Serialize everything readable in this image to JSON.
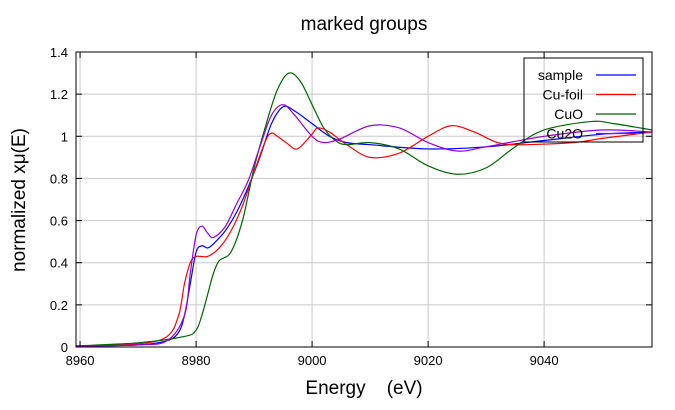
{
  "chart_data": {
    "type": "line",
    "title": "marked groups",
    "xlabel": "Energy    (eV)",
    "ylabel": "normalized xμ(E)",
    "xlim": [
      8959.3,
      9058.6
    ],
    "ylim": [
      0,
      1.4
    ],
    "xticks": [
      8960,
      8980,
      9000,
      9020,
      9040
    ],
    "xtick_labels": [
      "8960",
      "8980",
      "9000",
      "9020",
      "9040"
    ],
    "yticks": [
      0,
      0.2,
      0.4,
      0.6,
      0.8,
      1.0,
      1.2,
      1.4
    ],
    "ytick_labels": [
      "0",
      "0.2",
      "0.4",
      "0.6",
      "0.8",
      "1",
      "1.2",
      "1.4"
    ],
    "grid": true,
    "legend_position": "top-right",
    "series": [
      {
        "name": "sample",
        "color": "#0000ff",
        "x": [
          8959.3,
          8970,
          8975,
          8977,
          8978,
          8979,
          8980,
          8981,
          8982,
          8983,
          8985,
          8987,
          8989,
          8991,
          8993,
          8995,
          8997,
          9000,
          9003,
          9006,
          9010,
          9020,
          9030,
          9040,
          9050,
          9058.6
        ],
        "y": [
          0.005,
          0.01,
          0.03,
          0.07,
          0.15,
          0.3,
          0.45,
          0.48,
          0.47,
          0.49,
          0.55,
          0.64,
          0.76,
          0.9,
          1.06,
          1.14,
          1.12,
          1.06,
          1.0,
          0.97,
          0.96,
          0.94,
          0.95,
          0.98,
          1.01,
          1.02
        ]
      },
      {
        "name": "Cu-foil",
        "color": "#ff0000",
        "x": [
          8959.3,
          8970,
          8975,
          8977,
          8978,
          8979,
          8980,
          8982,
          8984,
          8986,
          8988,
          8990,
          8992,
          8993,
          8994,
          8996,
          8997,
          8998,
          9000,
          9001,
          9003,
          9006,
          9010,
          9015,
          9020,
          9024,
          9028,
          9032,
          9036,
          9045,
          9050,
          9058.6
        ],
        "y": [
          0.005,
          0.015,
          0.05,
          0.15,
          0.3,
          0.4,
          0.43,
          0.43,
          0.47,
          0.55,
          0.67,
          0.83,
          0.98,
          1.015,
          1.0,
          0.96,
          0.94,
          0.95,
          1.01,
          1.04,
          1.02,
          0.96,
          0.9,
          0.92,
          1.0,
          1.05,
          1.02,
          0.97,
          0.96,
          0.97,
          0.99,
          1.02
        ]
      },
      {
        "name": "CuO",
        "color": "#006400",
        "x": [
          8959.3,
          8970,
          8978,
          8980,
          8981,
          8982,
          8983,
          8984,
          8986,
          8988,
          8990,
          8992,
          8994,
          8996,
          8998,
          9000,
          9002,
          9004,
          9006,
          9010,
          9015,
          9020,
          9025,
          9030,
          9035,
          9040,
          9048,
          9052,
          9058.6
        ],
        "y": [
          0.005,
          0.02,
          0.05,
          0.08,
          0.15,
          0.25,
          0.35,
          0.41,
          0.45,
          0.6,
          0.85,
          1.05,
          1.22,
          1.3,
          1.26,
          1.15,
          1.04,
          0.98,
          0.96,
          0.97,
          0.94,
          0.86,
          0.82,
          0.85,
          0.95,
          1.03,
          1.07,
          1.06,
          1.03
        ]
      },
      {
        "name": "Cu2O",
        "color": "#9400d3",
        "x": [
          8959.3,
          8970,
          8975,
          8978,
          8979,
          8980,
          8981,
          8982,
          8983,
          8985,
          8987,
          8989,
          8991,
          8993,
          8995,
          8997,
          9000,
          9002,
          9005,
          9010,
          9015,
          9020,
          9025,
          9030,
          9040,
          9050,
          9058.6
        ],
        "y": [
          0.005,
          0.01,
          0.03,
          0.15,
          0.35,
          0.53,
          0.574,
          0.54,
          0.52,
          0.57,
          0.68,
          0.79,
          0.95,
          1.1,
          1.15,
          1.1,
          1.0,
          0.97,
          0.99,
          1.05,
          1.04,
          0.97,
          0.93,
          0.95,
          1.0,
          1.03,
          1.02
        ]
      }
    ]
  }
}
